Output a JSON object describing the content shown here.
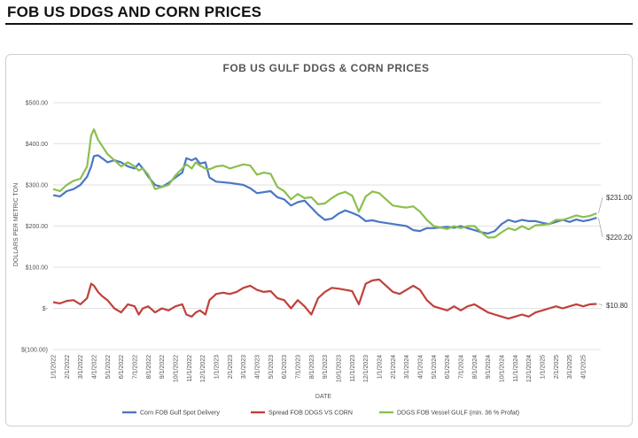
{
  "page": {
    "title": "FOB US DDGS AND CORN PRICES"
  },
  "colors": {
    "corn": "#4a77c4",
    "spread": "#c0413b",
    "ddgs": "#8cbf4f",
    "grid": "#e2e2e2"
  },
  "chart_data": {
    "type": "line",
    "title": "FOB US GULF DDGS & CORN PRICES",
    "xlabel": "DATE",
    "ylabel": "DOLLARS PER METRIC TON",
    "ylim": [
      -100,
      500
    ],
    "yticks": [
      -100,
      0,
      100,
      200,
      300,
      400,
      500
    ],
    "ytick_labels": [
      "$(100.00)",
      "$-",
      "$100.00",
      "$200.00",
      "$300.00",
      "$400.00",
      "$500.00"
    ],
    "grid": "horizontal",
    "legend_position": "bottom",
    "x_months": [
      "1/1/2022",
      "2/1/2022",
      "3/1/2022",
      "4/1/2022",
      "5/1/2022",
      "6/1/2022",
      "7/1/2022",
      "8/1/2022",
      "9/1/2022",
      "10/1/2022",
      "11/1/2022",
      "12/1/2022",
      "1/1/2023",
      "2/1/2023",
      "3/1/2023",
      "4/1/2023",
      "5/1/2023",
      "6/1/2023",
      "7/1/2023",
      "8/1/2023",
      "9/1/2023",
      "10/1/2023",
      "11/1/2023",
      "12/1/2023",
      "1/1/2024",
      "2/1/2024",
      "3/1/2024",
      "4/1/2024",
      "5/1/2024",
      "6/1/2024",
      "7/1/2024",
      "8/1/2024",
      "9/1/2024",
      "10/1/2024",
      "11/1/2024",
      "12/1/2024",
      "1/1/2025",
      "2/1/2025",
      "3/1/2025",
      "4/1/2025"
    ],
    "x_range_months": [
      0,
      40.3
    ],
    "series": [
      {
        "name": "Corn FOB Gulf Spot Delivery",
        "color_key": "corn",
        "points": [
          [
            0,
            275
          ],
          [
            0.5,
            272
          ],
          [
            1,
            285
          ],
          [
            1.5,
            290
          ],
          [
            2,
            300
          ],
          [
            2.5,
            320
          ],
          [
            2.8,
            345
          ],
          [
            3,
            370
          ],
          [
            3.3,
            372
          ],
          [
            3.6,
            365
          ],
          [
            4,
            355
          ],
          [
            4.5,
            360
          ],
          [
            5,
            355
          ],
          [
            5.5,
            345
          ],
          [
            6,
            340
          ],
          [
            6.3,
            352
          ],
          [
            6.6,
            340
          ],
          [
            7,
            320
          ],
          [
            7.5,
            300
          ],
          [
            8,
            295
          ],
          [
            8.5,
            305
          ],
          [
            9,
            318
          ],
          [
            9.5,
            330
          ],
          [
            9.8,
            365
          ],
          [
            10.2,
            360
          ],
          [
            10.5,
            365
          ],
          [
            10.8,
            352
          ],
          [
            11.2,
            355
          ],
          [
            11.5,
            318
          ],
          [
            12,
            308
          ],
          [
            13,
            305
          ],
          [
            14,
            300
          ],
          [
            14.5,
            292
          ],
          [
            15,
            280
          ],
          [
            16,
            285
          ],
          [
            16.5,
            270
          ],
          [
            17,
            265
          ],
          [
            17.5,
            250
          ],
          [
            18,
            258
          ],
          [
            18.5,
            262
          ],
          [
            19,
            245
          ],
          [
            19.5,
            228
          ],
          [
            20,
            215
          ],
          [
            20.5,
            218
          ],
          [
            21,
            230
          ],
          [
            21.5,
            238
          ],
          [
            22,
            232
          ],
          [
            22.5,
            225
          ],
          [
            23,
            212
          ],
          [
            23.5,
            214
          ],
          [
            24,
            210
          ],
          [
            25,
            205
          ],
          [
            26,
            200
          ],
          [
            26.5,
            190
          ],
          [
            27,
            188
          ],
          [
            27.5,
            195
          ],
          [
            28,
            195
          ],
          [
            29,
            198
          ],
          [
            29.5,
            196
          ],
          [
            30,
            200
          ],
          [
            30.5,
            195
          ],
          [
            31,
            190
          ],
          [
            31.5,
            185
          ],
          [
            32,
            182
          ],
          [
            32.5,
            188
          ],
          [
            33,
            205
          ],
          [
            33.5,
            215
          ],
          [
            34,
            210
          ],
          [
            34.5,
            215
          ],
          [
            35,
            212
          ],
          [
            35.5,
            212
          ],
          [
            36,
            208
          ],
          [
            36.5,
            205
          ],
          [
            37,
            210
          ],
          [
            37.5,
            215
          ],
          [
            38,
            210
          ],
          [
            38.5,
            216
          ],
          [
            39,
            212
          ],
          [
            39.5,
            215
          ],
          [
            40,
            220.2
          ]
        ]
      },
      {
        "name": "Spread FOB DDGS VS CORN",
        "color_key": "spread",
        "points": [
          [
            0,
            15
          ],
          [
            0.5,
            12
          ],
          [
            1,
            18
          ],
          [
            1.5,
            20
          ],
          [
            2,
            10
          ],
          [
            2.5,
            25
          ],
          [
            2.8,
            60
          ],
          [
            3,
            55
          ],
          [
            3.3,
            40
          ],
          [
            3.6,
            30
          ],
          [
            4,
            20
          ],
          [
            4.5,
            0
          ],
          [
            5,
            -10
          ],
          [
            5.5,
            10
          ],
          [
            6,
            5
          ],
          [
            6.3,
            -15
          ],
          [
            6.6,
            0
          ],
          [
            7,
            5
          ],
          [
            7.5,
            -10
          ],
          [
            8,
            0
          ],
          [
            8.5,
            -5
          ],
          [
            9,
            5
          ],
          [
            9.5,
            10
          ],
          [
            9.8,
            -15
          ],
          [
            10.2,
            -20
          ],
          [
            10.5,
            -10
          ],
          [
            10.8,
            -5
          ],
          [
            11.2,
            -15
          ],
          [
            11.5,
            20
          ],
          [
            12,
            35
          ],
          [
            12.5,
            38
          ],
          [
            13,
            35
          ],
          [
            13.5,
            40
          ],
          [
            14,
            50
          ],
          [
            14.5,
            55
          ],
          [
            15,
            45
          ],
          [
            15.5,
            40
          ],
          [
            16,
            42
          ],
          [
            16.5,
            25
          ],
          [
            17,
            20
          ],
          [
            17.5,
            0
          ],
          [
            18,
            20
          ],
          [
            18.5,
            5
          ],
          [
            19,
            -15
          ],
          [
            19.5,
            25
          ],
          [
            20,
            40
          ],
          [
            20.5,
            50
          ],
          [
            21,
            48
          ],
          [
            21.5,
            45
          ],
          [
            22,
            42
          ],
          [
            22.5,
            10
          ],
          [
            23,
            60
          ],
          [
            23.5,
            68
          ],
          [
            24,
            70
          ],
          [
            24.5,
            55
          ],
          [
            25,
            40
          ],
          [
            25.5,
            35
          ],
          [
            26,
            45
          ],
          [
            26.5,
            55
          ],
          [
            27,
            45
          ],
          [
            27.5,
            20
          ],
          [
            28,
            5
          ],
          [
            29,
            -5
          ],
          [
            29.5,
            5
          ],
          [
            30,
            -5
          ],
          [
            30.5,
            5
          ],
          [
            31,
            10
          ],
          [
            31.5,
            0
          ],
          [
            32,
            -10
          ],
          [
            32.5,
            -15
          ],
          [
            33,
            -20
          ],
          [
            33.5,
            -25
          ],
          [
            34,
            -20
          ],
          [
            34.5,
            -15
          ],
          [
            35,
            -20
          ],
          [
            35.5,
            -10
          ],
          [
            36,
            -5
          ],
          [
            36.5,
            0
          ],
          [
            37,
            5
          ],
          [
            37.5,
            0
          ],
          [
            38,
            5
          ],
          [
            38.5,
            10
          ],
          [
            39,
            5
          ],
          [
            39.5,
            10
          ],
          [
            40,
            10.8
          ]
        ]
      },
      {
        "name": "DDGS FOB Vessel GULF  (min. 36 % Profat)",
        "color_key": "ddgs",
        "points": [
          [
            0,
            290
          ],
          [
            0.5,
            285
          ],
          [
            1,
            300
          ],
          [
            1.5,
            310
          ],
          [
            2,
            315
          ],
          [
            2.5,
            345
          ],
          [
            2.8,
            420
          ],
          [
            3,
            435
          ],
          [
            3.3,
            410
          ],
          [
            3.6,
            395
          ],
          [
            4,
            375
          ],
          [
            4.5,
            360
          ],
          [
            5,
            345
          ],
          [
            5.5,
            355
          ],
          [
            6,
            345
          ],
          [
            6.3,
            335
          ],
          [
            6.6,
            340
          ],
          [
            7,
            325
          ],
          [
            7.5,
            290
          ],
          [
            8,
            295
          ],
          [
            8.5,
            300
          ],
          [
            9,
            323
          ],
          [
            9.5,
            340
          ],
          [
            9.8,
            350
          ],
          [
            10.2,
            340
          ],
          [
            10.5,
            355
          ],
          [
            10.8,
            347
          ],
          [
            11.2,
            340
          ],
          [
            11.5,
            338
          ],
          [
            12,
            345
          ],
          [
            12.5,
            347
          ],
          [
            13,
            340
          ],
          [
            13.5,
            345
          ],
          [
            14,
            350
          ],
          [
            14.5,
            347
          ],
          [
            15,
            325
          ],
          [
            15.5,
            330
          ],
          [
            16,
            327
          ],
          [
            16.5,
            295
          ],
          [
            17,
            285
          ],
          [
            17.5,
            265
          ],
          [
            18,
            278
          ],
          [
            18.5,
            268
          ],
          [
            19,
            270
          ],
          [
            19.5,
            253
          ],
          [
            20,
            255
          ],
          [
            20.5,
            268
          ],
          [
            21,
            278
          ],
          [
            21.5,
            283
          ],
          [
            22,
            274
          ],
          [
            22.5,
            235
          ],
          [
            23,
            272
          ],
          [
            23.5,
            284
          ],
          [
            24,
            280
          ],
          [
            24.5,
            265
          ],
          [
            25,
            250
          ],
          [
            25.5,
            247
          ],
          [
            26,
            245
          ],
          [
            26.5,
            248
          ],
          [
            27,
            235
          ],
          [
            27.5,
            215
          ],
          [
            28,
            200
          ],
          [
            29,
            193
          ],
          [
            29.5,
            200
          ],
          [
            30,
            195
          ],
          [
            30.5,
            200
          ],
          [
            31,
            200
          ],
          [
            31.5,
            185
          ],
          [
            32,
            172
          ],
          [
            32.5,
            173
          ],
          [
            33,
            185
          ],
          [
            33.5,
            195
          ],
          [
            34,
            190
          ],
          [
            34.5,
            200
          ],
          [
            35,
            192
          ],
          [
            35.5,
            202
          ],
          [
            36,
            203
          ],
          [
            36.5,
            205
          ],
          [
            37,
            215
          ],
          [
            37.5,
            215
          ],
          [
            38,
            220
          ],
          [
            38.5,
            226
          ],
          [
            39,
            222
          ],
          [
            39.5,
            225
          ],
          [
            40,
            231
          ]
        ]
      }
    ],
    "end_labels": [
      "$231.00",
      "$220.20",
      "$10.80"
    ]
  }
}
